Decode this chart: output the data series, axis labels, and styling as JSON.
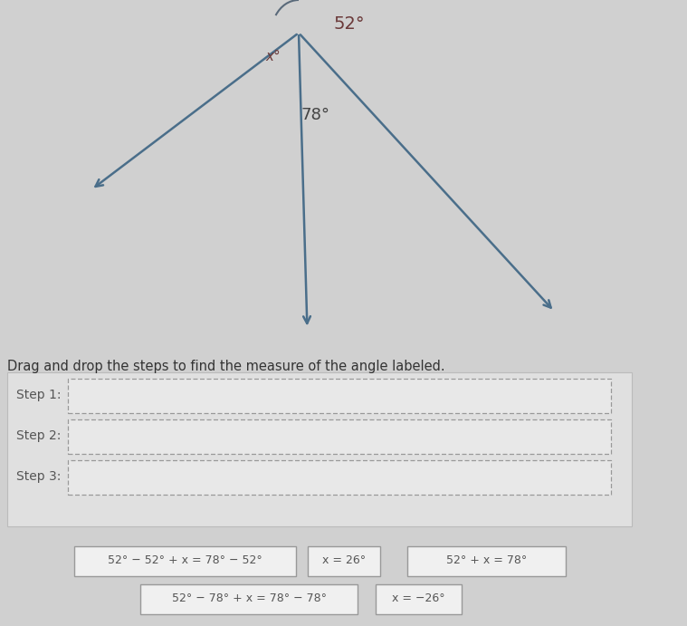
{
  "bg_color": "#d0d0d0",
  "diagram_bg": "#ebebeb",
  "lower_bg": "#e8e8e8",
  "title_text": "Drag and drop the steps to find the measure of the angle labeled.",
  "angle_52_label": "52°",
  "angle_78_label": "78°",
  "x_label": "x°",
  "step_labels": [
    "Step 1:",
    "Step 2:",
    "Step 3:"
  ],
  "drag_row1": [
    "52° − 52° + x = 78° − 52°",
    "x = 26°",
    "52° + x = 78°"
  ],
  "drag_row2": [
    "52° − 78° + x = 78° − 78°",
    "x = −26°"
  ],
  "arrow_color": "#4a6e8a",
  "line_color": "#4a5a6a",
  "arc_color": "#5a6a7a",
  "text_dark": "#444444",
  "text_angle": "#6b3a3a",
  "step_label_color": "#555555",
  "drag_text_color": "#555555"
}
